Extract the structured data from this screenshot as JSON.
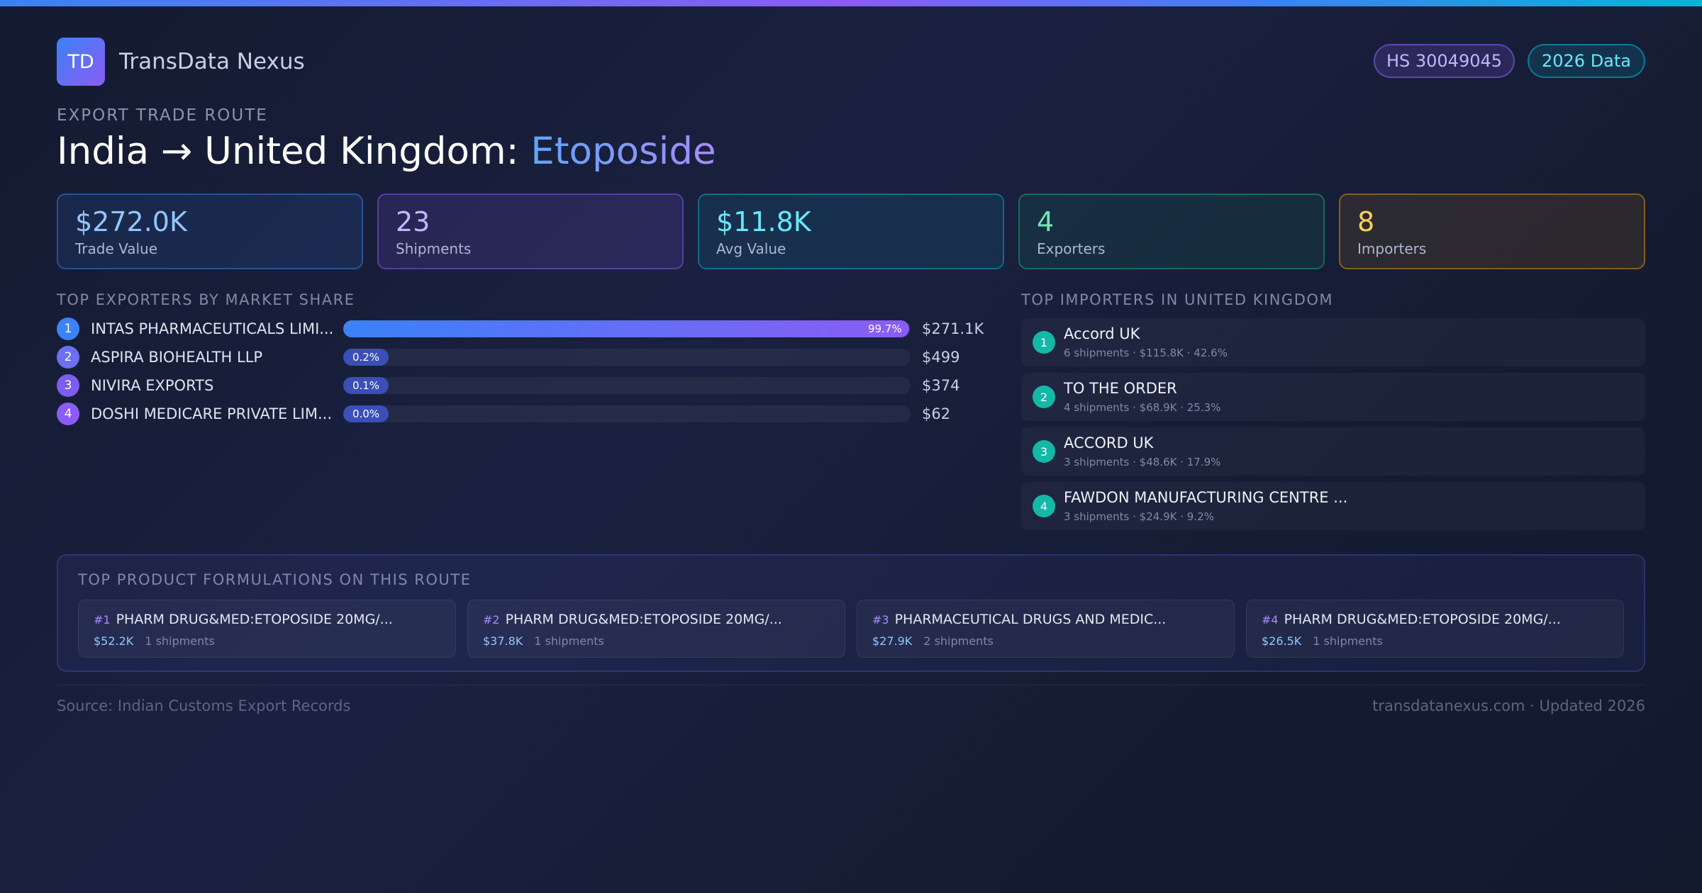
{
  "brand": {
    "logo": "TD",
    "name": "TransData Nexus"
  },
  "pills": {
    "hs_code": "HS 30049045",
    "data_year": "2026 Data"
  },
  "route": {
    "eyebrow": "EXPORT TRADE ROUTE",
    "title_prefix": "India → United Kingdom: ",
    "product": "Etoposide"
  },
  "stats": [
    {
      "value": "$272.0K",
      "label": "Trade Value"
    },
    {
      "value": "23",
      "label": "Shipments"
    },
    {
      "value": "$11.8K",
      "label": "Avg Value"
    },
    {
      "value": "4",
      "label": "Exporters"
    },
    {
      "value": "8",
      "label": "Importers"
    }
  ],
  "exporters": {
    "title": "TOP EXPORTERS BY MARKET SHARE",
    "items": [
      {
        "rank": "1",
        "name": "INTAS PHARMACEUTICALS LIMI...",
        "share": 99.7,
        "share_label": "99.7%",
        "value": "$271.1K",
        "color": "#3b82f6"
      },
      {
        "rank": "2",
        "name": "ASPIRA BIOHEALTH LLP",
        "share": 0.2,
        "share_label": "0.2%",
        "value": "$499",
        "color": "#6d6ff0"
      },
      {
        "rank": "3",
        "name": "NIVIRA EXPORTS",
        "share": 0.1,
        "share_label": "0.1%",
        "value": "$374",
        "color": "#7c5cf2"
      },
      {
        "rank": "4",
        "name": "DOSHI MEDICARE PRIVATE LIM...",
        "share": 0.0,
        "share_label": "0.0%",
        "value": "$62",
        "color": "#8b5cf6"
      }
    ]
  },
  "importers": {
    "title": "TOP IMPORTERS IN UNITED KINGDOM",
    "items": [
      {
        "rank": "1",
        "name": "Accord UK",
        "meta": "6 shipments · $115.8K · 42.6%"
      },
      {
        "rank": "2",
        "name": "TO THE ORDER",
        "meta": "4 shipments · $68.9K · 25.3%"
      },
      {
        "rank": "3",
        "name": "ACCORD UK",
        "meta": "3 shipments · $48.6K · 17.9%"
      },
      {
        "rank": "4",
        "name": "FAWDON MANUFACTURING CENTRE ...",
        "meta": "3 shipments · $24.9K · 9.2%"
      }
    ]
  },
  "formulations": {
    "title": "TOP PRODUCT FORMULATIONS ON THIS ROUTE",
    "items": [
      {
        "rank": "#1",
        "name": "PHARM DRUG&MED:ETOPOSIDE 20MG/...",
        "value": "$52.2K",
        "shipments": "1 shipments"
      },
      {
        "rank": "#2",
        "name": "PHARM DRUG&MED:ETOPOSIDE 20MG/...",
        "value": "$37.8K",
        "shipments": "1 shipments"
      },
      {
        "rank": "#3",
        "name": "PHARMACEUTICAL DRUGS AND MEDIC...",
        "value": "$27.9K",
        "shipments": "2 shipments"
      },
      {
        "rank": "#4",
        "name": "PHARM DRUG&MED:ETOPOSIDE 20MG/...",
        "value": "$26.5K",
        "shipments": "1 shipments"
      }
    ]
  },
  "footer": {
    "source": "Source: Indian Customs Export Records",
    "site": "transdatanexus.com · Updated 2026"
  }
}
